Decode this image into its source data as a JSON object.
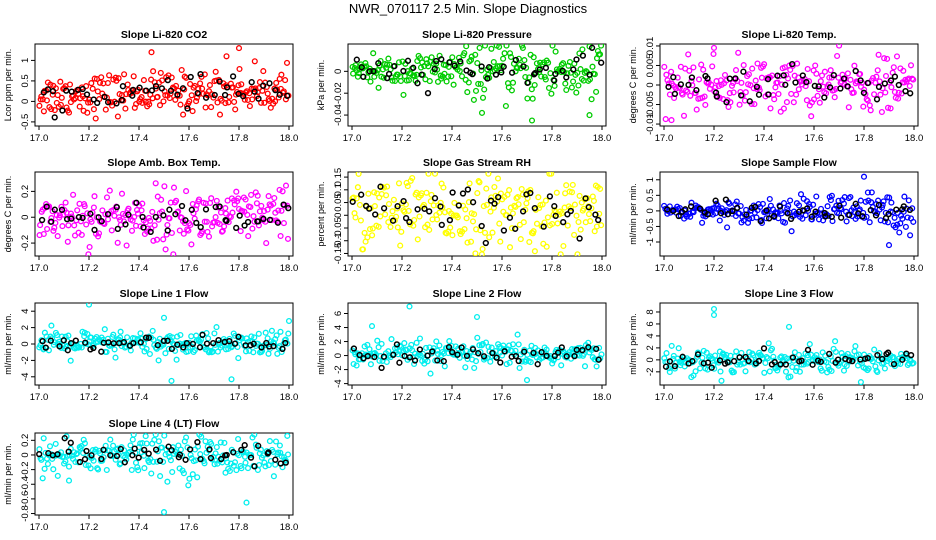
{
  "figure_title": "NWR_070117  2.5 Min. Slope Diagnostics",
  "chart_data": [
    {
      "type": "scatter",
      "title": "Slope Li-820 CO2",
      "ylabel": "Lcor ppm per min.",
      "xlim": [
        17.0,
        18.0
      ],
      "ylim": [
        -0.6,
        1.4
      ],
      "yticks": [
        -0.5,
        0,
        0.5,
        1
      ],
      "color": "#ff0000",
      "xticks": [
        17.0,
        17.2,
        17.4,
        17.6,
        17.8,
        18.0
      ],
      "spread": [
        -0.3,
        0.6
      ],
      "trend": "slight-up",
      "outliers": [
        [
          17.45,
          1.2
        ],
        [
          17.8,
          1.3
        ],
        [
          17.75,
          1.1
        ]
      ]
    },
    {
      "type": "scatter",
      "title": "Slope Li-820 Pressure",
      "ylabel": "kPa per min.",
      "xlim": [
        17.0,
        18.0
      ],
      "ylim": [
        -0.05,
        0.025
      ],
      "yticks": [
        -0.04,
        -0.02,
        0
      ],
      "color": "#00cc00",
      "xticks": [
        17.0,
        17.2,
        17.4,
        17.6,
        17.8,
        18.0
      ],
      "spread": [
        -0.02,
        0.02
      ],
      "trend": "widening",
      "outliers": [
        [
          17.72,
          -0.045
        ],
        [
          17.95,
          -0.04
        ],
        [
          17.52,
          -0.038
        ]
      ]
    },
    {
      "type": "scatter",
      "title": "Slope Li-820 Temp.",
      "ylabel": "degrees C per min.",
      "xlim": [
        17.0,
        18.0
      ],
      "ylim": [
        -0.0105,
        0.0105
      ],
      "yticks": [
        -0.01,
        -0.005,
        0,
        0.005,
        0.01
      ],
      "color": "#ff00ff",
      "xticks": [
        17.0,
        17.2,
        17.4,
        17.6,
        17.8,
        18.0
      ],
      "spread": [
        -0.006,
        0.006
      ],
      "trend": "flat",
      "outliers": [
        [
          17.03,
          -0.009
        ],
        [
          17.2,
          0.0095
        ]
      ]
    },
    {
      "type": "scatter",
      "title": "Slope Amb. Box Temp.",
      "ylabel": "degrees C per min.",
      "xlim": [
        17.0,
        18.0
      ],
      "ylim": [
        -0.3,
        0.35
      ],
      "yticks": [
        -0.2,
        0,
        0.2
      ],
      "color": "#ff00ff",
      "xticks": [
        17.0,
        17.2,
        17.4,
        17.6,
        17.8,
        18.0
      ],
      "spread": [
        -0.2,
        0.2
      ],
      "trend": "flat",
      "outliers": []
    },
    {
      "type": "scatter",
      "title": "Slope Gas Stream RH",
      "ylabel": "percent per min.",
      "xlim": [
        17.0,
        18.0
      ],
      "ylim": [
        -0.16,
        0.17
      ],
      "yticks": [
        -0.15,
        -0.1,
        -0.05,
        0,
        0.05,
        0.1,
        0.15
      ],
      "color": "#ffff00",
      "xticks": [
        17.0,
        17.2,
        17.4,
        17.6,
        17.8,
        18.0
      ],
      "spread": [
        -0.12,
        0.14
      ],
      "trend": "flat",
      "outliers": []
    },
    {
      "type": "scatter",
      "title": "Slope Sample Flow",
      "ylabel": "ml/min per min.",
      "xlim": [
        17.0,
        18.0
      ],
      "ylim": [
        -1.45,
        1.25
      ],
      "yticks": [
        -1,
        -0.5,
        0,
        0.5,
        1
      ],
      "color": "#0000ff",
      "xticks": [
        17.0,
        17.2,
        17.4,
        17.6,
        17.8,
        18.0
      ],
      "spread": [
        -0.4,
        0.4
      ],
      "trend": "widening",
      "outliers": [
        [
          17.8,
          1.1
        ],
        [
          17.9,
          -1.1
        ]
      ]
    },
    {
      "type": "scatter",
      "title": "Slope Line 1 Flow",
      "ylabel": "ml/min per min.",
      "xlim": [
        17.0,
        18.0
      ],
      "ylim": [
        -5,
        5
      ],
      "yticks": [
        -4,
        -2,
        0,
        2,
        4
      ],
      "color": "#00eeee",
      "xticks": [
        17.0,
        17.2,
        17.4,
        17.6,
        17.8,
        18.0
      ],
      "spread": [
        -1.5,
        1.5
      ],
      "trend": "flat",
      "outliers": [
        [
          17.2,
          4.8
        ],
        [
          17.5,
          3.2
        ],
        [
          17.53,
          -4.5
        ],
        [
          17.77,
          -4.3
        ],
        [
          18.0,
          2.8
        ]
      ]
    },
    {
      "type": "scatter",
      "title": "Slope Line 2 Flow",
      "ylabel": "ml/min per min.",
      "xlim": [
        17.0,
        18.0
      ],
      "ylim": [
        -4.2,
        7.5
      ],
      "yticks": [
        -4,
        -2,
        0,
        2,
        4,
        6
      ],
      "color": "#00eeee",
      "xticks": [
        17.0,
        17.2,
        17.4,
        17.6,
        17.8,
        18.0
      ],
      "spread": [
        -1.5,
        1.8
      ],
      "trend": "flat",
      "outliers": [
        [
          17.08,
          4.2
        ],
        [
          17.23,
          7.0
        ],
        [
          17.5,
          5.5
        ],
        [
          17.7,
          -3.5
        ]
      ]
    },
    {
      "type": "scatter",
      "title": "Slope Line 3 Flow",
      "ylabel": "ml/min per min.",
      "xlim": [
        17.0,
        18.0
      ],
      "ylim": [
        -4.2,
        9.5
      ],
      "yticks": [
        -2,
        0,
        2,
        4,
        6,
        8
      ],
      "color": "#00eeee",
      "xticks": [
        17.0,
        17.2,
        17.4,
        17.6,
        17.8,
        18.0
      ],
      "spread": [
        -2,
        2
      ],
      "trend": "flat",
      "outliers": [
        [
          17.2,
          8.5
        ],
        [
          17.2,
          7.5
        ],
        [
          17.5,
          5.5
        ],
        [
          17.23,
          -3.5
        ]
      ]
    },
    {
      "type": "scatter",
      "title": "Slope Line 4 (LT) Flow",
      "ylabel": "ml/min per min.",
      "xlim": [
        17.0,
        18.0
      ],
      "ylim": [
        -0.82,
        0.3
      ],
      "yticks": [
        -0.8,
        -0.6,
        -0.4,
        -0.2,
        0,
        0.2
      ],
      "color": "#00eeee",
      "xticks": [
        17.0,
        17.2,
        17.4,
        17.6,
        17.8,
        18.0
      ],
      "spread": [
        -0.25,
        0.25
      ],
      "trend": "flat",
      "outliers": [
        [
          17.5,
          -0.78
        ],
        [
          17.83,
          -0.65
        ],
        [
          17.12,
          -0.35
        ]
      ]
    }
  ]
}
